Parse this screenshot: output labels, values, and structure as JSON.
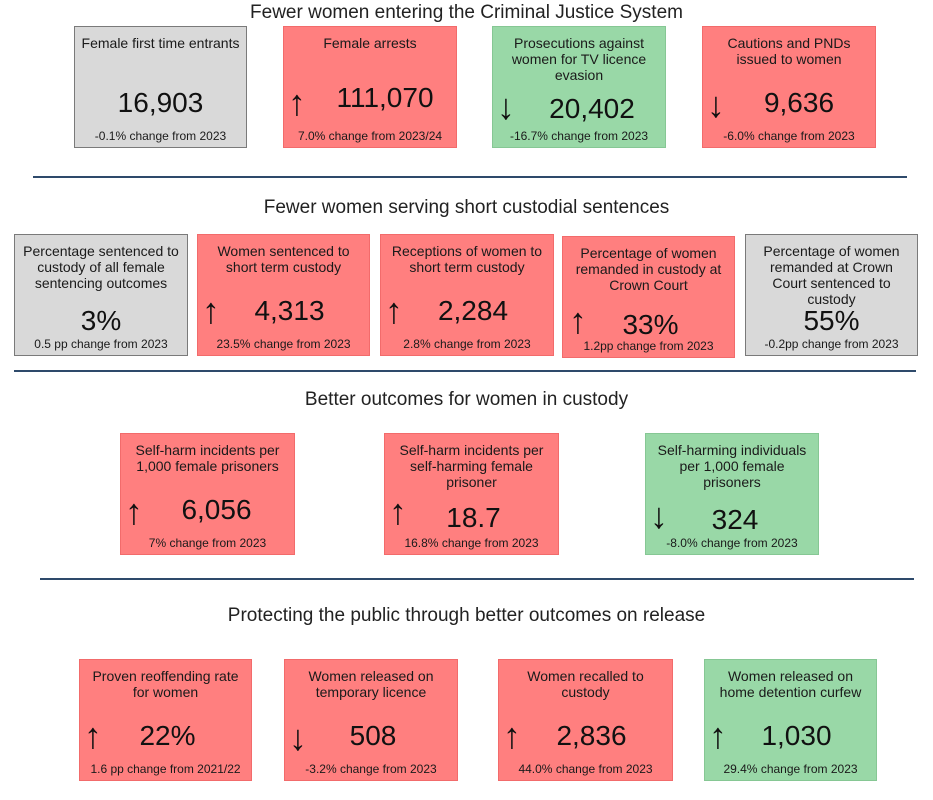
{
  "sections": [
    {
      "title": "Fewer women entering the Criminal Justice System"
    },
    {
      "title": "Fewer women serving short custodial sentences"
    },
    {
      "title": "Better outcomes for women in custody"
    },
    {
      "title": "Protecting the public through better outcomes on release"
    }
  ],
  "cards": [
    {
      "label": "Female first time entrants",
      "value": "16,903",
      "arrow": "",
      "change": "-0.1% change from 2023",
      "status": "neutral",
      "color": "#d9d9d9"
    },
    {
      "label": "Female arrests",
      "value": "111,070",
      "arrow": "↑",
      "change": "7.0% change from 2023/24",
      "status": "worse",
      "color": "#ff7f7f"
    },
    {
      "label": "Prosecutions against women for TV licence evasion",
      "value": "20,402",
      "arrow": "↓",
      "change": "-16.7% change from 2023",
      "status": "better",
      "color": "#99d8a7"
    },
    {
      "label": "Cautions and PNDs issued to women",
      "value": "9,636",
      "arrow": "↓",
      "change": "-6.0% change from 2023",
      "status": "worse",
      "color": "#ff7f7f"
    },
    {
      "label": "Percentage sentenced to custody of all female sentencing outcomes",
      "value": "3%",
      "arrow": "",
      "change": "0.5 pp change from 2023",
      "status": "neutral",
      "color": "#d9d9d9"
    },
    {
      "label": "Women sentenced to short term custody",
      "value": "4,313",
      "arrow": "↑",
      "change": "23.5% change from 2023",
      "status": "worse",
      "color": "#ff7f7f"
    },
    {
      "label": "Receptions of women to short term custody",
      "value": "2,284",
      "arrow": "↑",
      "change": "2.8%  change from 2023",
      "status": "worse",
      "color": "#ff7f7f"
    },
    {
      "label": "Percentage of women remanded in custody at Crown Court",
      "value": "33%",
      "arrow": "↑",
      "change": "1.2pp change from 2023",
      "status": "worse",
      "color": "#ff7f7f"
    },
    {
      "label": "Percentage of women remanded at Crown Court sentenced to custody",
      "value": "55%",
      "arrow": "",
      "change": "-0.2pp change from 2023",
      "status": "neutral",
      "color": "#d9d9d9"
    },
    {
      "label": "Self-harm incidents per 1,000 female prisoners",
      "value": "6,056",
      "arrow": "↑",
      "change": "7%   change from 2023",
      "status": "worse",
      "color": "#ff7f7f"
    },
    {
      "label": "Self-harm incidents per self-harming female prisoner",
      "value": "18.7",
      "arrow": "↑",
      "change": "16.8% change from 2023",
      "status": "worse",
      "color": "#ff7f7f"
    },
    {
      "label": "Self-harming individuals per 1,000 female prisoners",
      "value": "324",
      "arrow": "↓",
      "change": "-8.0%  change from 2023",
      "status": "better",
      "color": "#99d8a7"
    },
    {
      "label": "Proven reoffending rate for women",
      "value": "22%",
      "arrow": "↑",
      "change": "1.6 pp change from 2021/22",
      "status": "worse",
      "color": "#ff7f7f"
    },
    {
      "label": "Women released on temporary licence",
      "value": "508",
      "arrow": "↓",
      "change": "-3.2% change from 2023",
      "status": "worse",
      "color": "#ff7f7f"
    },
    {
      "label": "Women recalled to custody",
      "value": "2,836",
      "arrow": "↑",
      "change": "44.0% change from 2023",
      "status": "worse",
      "color": "#ff7f7f"
    },
    {
      "label": "Women released on home detention curfew",
      "value": "1,030",
      "arrow": "↑",
      "change": "29.4% change from 2023",
      "status": "better",
      "color": "#99d8a7"
    }
  ]
}
